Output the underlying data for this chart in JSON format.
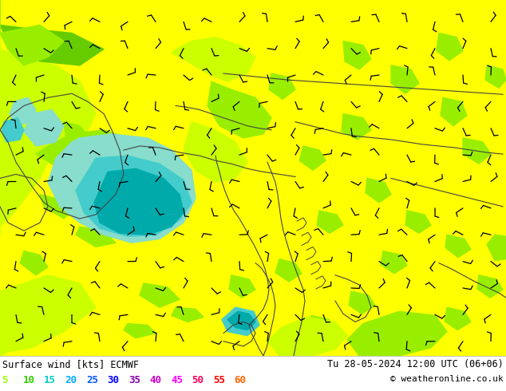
{
  "title_left": "Surface wind [kts] ECMWF",
  "title_right": "Tu 28-05-2024 12:00 UTC (06+06)",
  "copyright": "© weatheronline.co.uk",
  "legend_values": [
    "5",
    "10",
    "15",
    "20",
    "25",
    "30",
    "35",
    "40",
    "45",
    "50",
    "55",
    "60"
  ],
  "legend_colors": [
    "#99ff00",
    "#33cc00",
    "#00cccc",
    "#00aaff",
    "#0055ff",
    "#0000ff",
    "#8800aa",
    "#cc00cc",
    "#ff00ff",
    "#ff0055",
    "#ff0000",
    "#ff6600"
  ],
  "bg_color": "#ffffff",
  "figsize": [
    6.34,
    4.9
  ],
  "dpi": 100,
  "colors": {
    "yellow": "#ffff00",
    "yellow_green": "#ccff00",
    "light_green": "#99ee00",
    "green": "#66cc00",
    "bright_green": "#33cc00",
    "cyan_light": "#88ddcc",
    "cyan": "#44cccc",
    "cyan_dark": "#00aaaa",
    "teal": "#008888",
    "dark_teal": "#005566",
    "blue_small": "#0088cc"
  }
}
